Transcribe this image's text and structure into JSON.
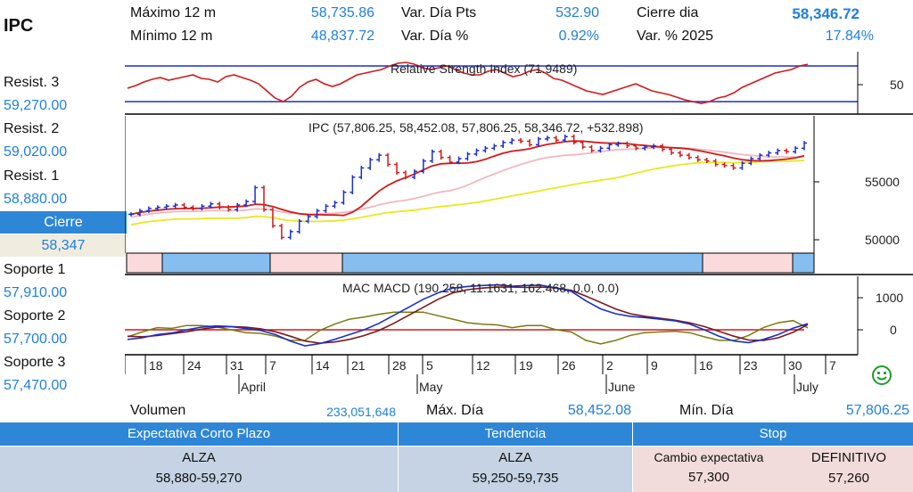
{
  "ticker": "IPC",
  "stats": {
    "max12_label": "Máximo 12 m",
    "max12_value": "58,735.86",
    "min12_label": "Mínimo 12 m",
    "min12_value": "48,837.72",
    "vardia_pts_label": "Var. Día Pts",
    "vardia_pts_value": "532.90",
    "vardia_pct_label": "Var. Día %",
    "vardia_pct_value": "0.92%",
    "cierre_dia_label": "Cierre dia",
    "cierre_dia_value": "58,346.72",
    "var2025_label": "Var. % 2025",
    "var2025_value": "17.84%"
  },
  "levels": {
    "r3_label": "Resist. 3",
    "r3_value": "59,270.00",
    "r2_label": "Resist. 2",
    "r2_value": "59,020.00",
    "r1_label": "Resist. 1",
    "r1_value": "58,880.00",
    "cierre_label": "Cierre",
    "cierre_value": "58,347",
    "s1_label": "Soporte 1",
    "s1_value": "57,910.00",
    "s2_label": "Soporte 2",
    "s2_value": "57,700.00",
    "s3_label": "Soporte 3",
    "s3_value": "57,470.00"
  },
  "bottom_stats": {
    "volumen_label": "Volumen",
    "volumen_value": "233,051,648",
    "maxdia_label": "Máx. Día",
    "maxdia_value": "58,452.08",
    "mindia_label": "Mín. Día",
    "mindia_value": "57,806.25"
  },
  "summary": {
    "expectativa_header": "Expectativa Corto Plazo",
    "expectativa_trend": "ALZA",
    "expectativa_range": "58,880-59,270",
    "tendencia_header": "Tendencia",
    "tendencia_trend": "ALZA",
    "tendencia_range": "59,250-59,735",
    "stop_header": "Stop",
    "stop_cambio_label": "Cambio expectativa",
    "stop_cambio_value": "57,300",
    "stop_definitivo_label": "DEFINITIVO",
    "stop_definitivo_value": "57,260"
  },
  "colors": {
    "accent": "#2e86d6",
    "value_blue": "#1f7fe0",
    "up_bar": "#1a2fcf",
    "down_bar": "#d11a1a"
  },
  "chart_data": [
    {
      "type": "line",
      "title": "Relative Strength Index (71.9489)",
      "y_ticks": [
        "50"
      ],
      "reference_lines": [
        70,
        30
      ],
      "values": [
        45,
        48,
        52,
        55,
        57,
        54,
        56,
        58,
        60,
        56,
        55,
        52,
        58,
        60,
        57,
        54,
        50,
        42,
        34,
        30,
        36,
        46,
        52,
        55,
        50,
        47,
        50,
        55,
        60,
        62,
        64,
        66,
        70,
        73,
        74,
        72,
        68,
        66,
        68,
        70,
        66,
        62,
        60,
        60,
        64,
        66,
        62,
        58,
        60,
        64,
        66,
        62,
        56,
        54,
        50,
        46,
        42,
        40,
        38,
        41,
        44,
        47,
        50,
        46,
        42,
        40,
        38,
        35,
        32,
        30,
        28,
        30,
        34,
        36,
        40,
        46,
        50,
        54,
        58,
        62,
        64,
        66,
        70,
        71.9
      ]
    },
    {
      "type": "line",
      "title": "IPC (57,806.25, 58,452.08, 57,806.25, 58,346.72, +532.898)",
      "x_tick_labels": [
        "18",
        "24",
        "31",
        "7",
        "14",
        "21",
        "28",
        "5",
        "12",
        "19",
        "26",
        "2",
        "9",
        "16",
        "23",
        "30",
        "7"
      ],
      "month_labels": [
        "April",
        "May",
        "June",
        "July"
      ],
      "y_ticks": [
        "55000",
        "50000"
      ],
      "ylim": [
        49000,
        59500
      ],
      "close": [
        52200,
        52500,
        52700,
        52800,
        52900,
        53000,
        52800,
        52700,
        52900,
        53100,
        52800,
        52600,
        53000,
        53300,
        54500,
        52600,
        51200,
        50200,
        50700,
        51600,
        52000,
        52500,
        52900,
        53200,
        54100,
        55400,
        56200,
        56900,
        57300,
        56500,
        55800,
        55400,
        55900,
        56800,
        57600,
        57100,
        56700,
        57000,
        57400,
        57700,
        57900,
        58100,
        58400,
        58600,
        58500,
        58200,
        58700,
        58800,
        58600,
        58900,
        58400,
        58000,
        57700,
        57900,
        58200,
        58300,
        58100,
        57900,
        58000,
        58100,
        57800,
        57500,
        57300,
        57100,
        56900,
        56800,
        56500,
        56400,
        56200,
        56600,
        57000,
        57300,
        57500,
        57700,
        57600,
        57900,
        58346.72
      ],
      "series": [
        {
          "name": "MA short",
          "color": "#d11a1a"
        },
        {
          "name": "MA medium",
          "color": "#f2b8bf"
        },
        {
          "name": "MA long",
          "color": "#e8e820"
        }
      ]
    },
    {
      "type": "line",
      "title": "MAC MACD (190.258, 11.1631, 162.468, 0.0, 0.0)",
      "y_ticks": [
        "1000",
        "0"
      ],
      "macd": [
        -300,
        -250,
        -150,
        -100,
        0,
        80,
        120,
        100,
        40,
        -20,
        -150,
        -350,
        -500,
        -430,
        -300,
        -150,
        0,
        200,
        450,
        700,
        950,
        1150,
        1300,
        1350,
        1380,
        1400,
        1360,
        1380,
        1390,
        1300,
        1200,
        900,
        650,
        500,
        420,
        380,
        330,
        280,
        180,
        0,
        -200,
        -350,
        -400,
        -300,
        -150,
        50,
        190
      ],
      "signal": [
        -200,
        -220,
        -180,
        -120,
        -60,
        20,
        80,
        100,
        80,
        30,
        -60,
        -200,
        -350,
        -420,
        -380,
        -300,
        -180,
        -20,
        200,
        450,
        700,
        950,
        1150,
        1250,
        1300,
        1330,
        1330,
        1320,
        1330,
        1300,
        1230,
        1050,
        850,
        650,
        500,
        420,
        360,
        300,
        220,
        100,
        -50,
        -200,
        -320,
        -330,
        -250,
        -80,
        162
      ]
    }
  ]
}
